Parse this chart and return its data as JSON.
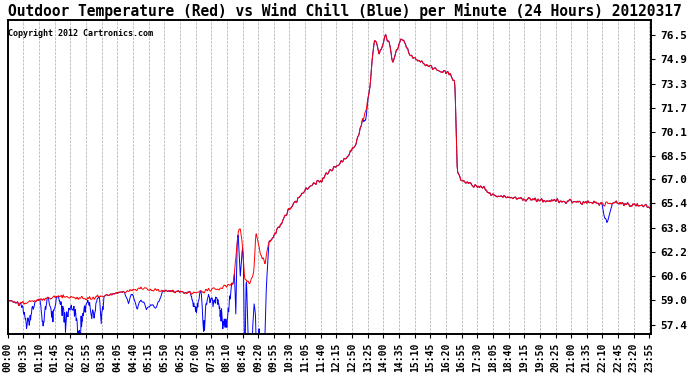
{
  "title": "Outdoor Temperature (Red) vs Wind Chill (Blue) per Minute (24 Hours) 20120317",
  "copyright_text": "Copyright 2012 Cartronics.com",
  "ylabel_right_ticks": [
    57.4,
    59.0,
    60.6,
    62.2,
    63.8,
    65.4,
    67.0,
    68.5,
    70.1,
    71.7,
    73.3,
    74.9,
    76.5
  ],
  "ylim": [
    56.8,
    77.5
  ],
  "background_color": "#ffffff",
  "plot_bg_color": "#ffffff",
  "grid_color": "#aaaaaa",
  "line_color_red": "#ff0000",
  "line_color_blue": "#0000ff",
  "title_fontsize": 10.5,
  "tick_fontsize": 7,
  "tick_interval_minutes": 35,
  "n_minutes": 1440
}
